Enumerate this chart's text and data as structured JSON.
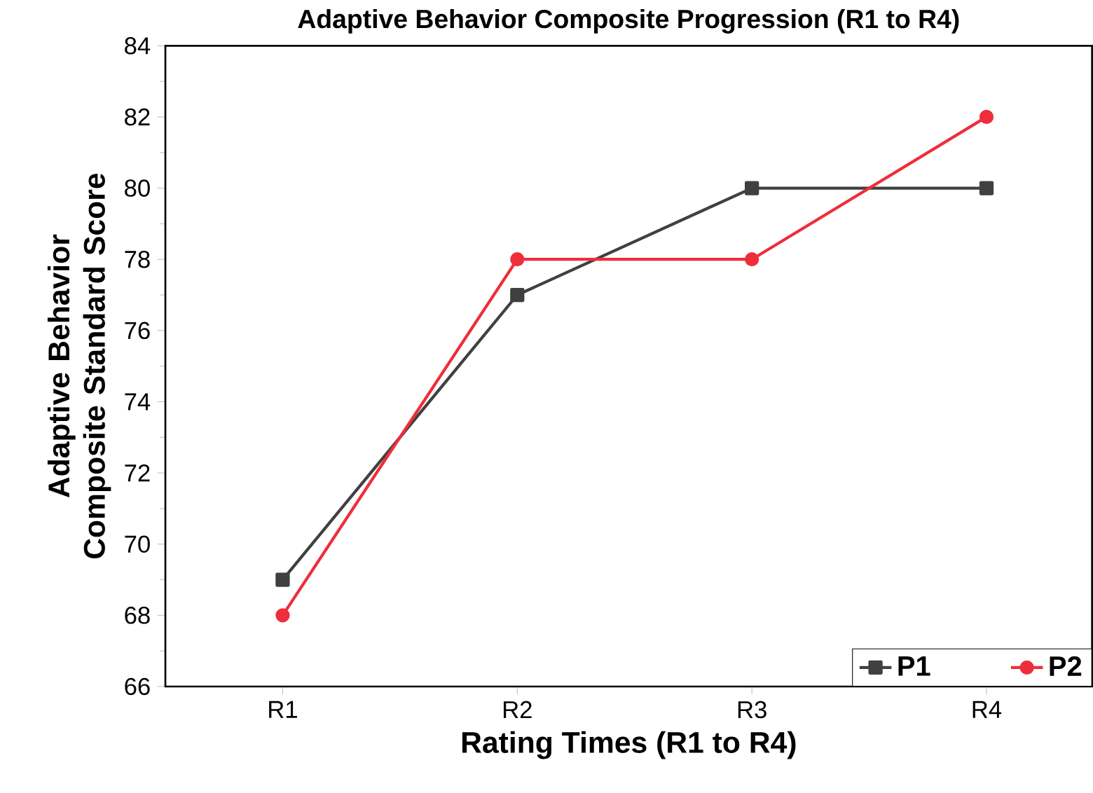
{
  "chart_data": {
    "type": "line",
    "title": "Adaptive Behavior Composite Progression (R1 to R4)",
    "xlabel": "Rating Times (R1 to R4)",
    "ylabel": "Adaptive Behavior Composite Standard Score",
    "categories": [
      "R1",
      "R2",
      "R3",
      "R4"
    ],
    "series": [
      {
        "name": "P1",
        "color": "#404040",
        "marker": "square",
        "values": [
          69,
          77,
          80,
          80
        ]
      },
      {
        "name": "P2",
        "color": "#ee2e3a",
        "marker": "circle",
        "values": [
          68,
          78,
          78,
          82
        ]
      }
    ],
    "ylim": [
      66,
      84
    ],
    "yticks": [
      66,
      68,
      70,
      72,
      74,
      76,
      78,
      80,
      82,
      84
    ],
    "grid": false,
    "legend": "bottom right",
    "line_style": "solid"
  }
}
